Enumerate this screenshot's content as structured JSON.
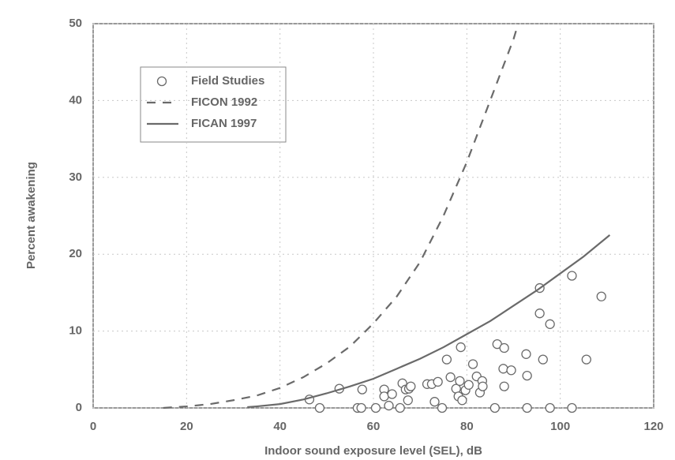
{
  "chart_data": {
    "type": "scatter",
    "x_label": "Indoor sound exposure level (SEL), dB",
    "y_label": "Percent awakening",
    "xlim": [
      0,
      120
    ],
    "xticks": [
      0,
      20,
      40,
      60,
      80,
      100,
      120
    ],
    "ylim": [
      0,
      50
    ],
    "yticks": [
      0,
      10,
      20,
      30,
      40,
      50
    ],
    "grid": true,
    "legend": "upper-left",
    "series": [
      {
        "name": "Field Studies",
        "style": "markers",
        "color": "#6a6a6a",
        "x": [
          46.3,
          48.5,
          52.7,
          56.6,
          57.4,
          57.6,
          60.5,
          62.3,
          62.3,
          63.3,
          64,
          65.7,
          66.2,
          66.9,
          67.6,
          68,
          67.4,
          71.5,
          72.5,
          73.1,
          73.8,
          74.7,
          75.7,
          76.5,
          77.7,
          78.2,
          78.5,
          78.7,
          79,
          79.7,
          80.4,
          81.3,
          82.1,
          82.8,
          83.3,
          83.4,
          86,
          86.5,
          87.8,
          88,
          88,
          89.5,
          92.7,
          92.9,
          92.9,
          95.6,
          95.6,
          96.3,
          97.8,
          97.8,
          102.5,
          102.5,
          105.6,
          108.8
        ],
        "values": [
          1.1,
          0,
          2.5,
          0,
          0,
          2.4,
          0,
          2.4,
          1.5,
          0.3,
          1.8,
          0,
          3.2,
          2.4,
          2.5,
          2.8,
          1,
          3.1,
          3.1,
          0.8,
          3.4,
          0,
          6.3,
          4,
          2.5,
          1.5,
          3.5,
          7.9,
          1,
          2.3,
          3,
          5.7,
          4.1,
          2,
          3.5,
          2.8,
          0,
          8.3,
          5.1,
          7.8,
          2.8,
          4.9,
          7,
          4.2,
          0,
          15.6,
          12.3,
          6.3,
          10.9,
          0,
          0,
          17.2,
          6.3,
          14.5
        ]
      },
      {
        "name": "FICON 1992",
        "style": "dashed",
        "color": "#6a6a6a",
        "x": [
          15,
          20,
          25,
          30,
          35,
          40,
          45,
          50,
          55,
          60,
          65,
          70,
          75,
          80,
          85,
          90,
          91
        ],
        "values": [
          0,
          0.2,
          0.5,
          1,
          1.6,
          2.6,
          4,
          5.8,
          8,
          11,
          14.5,
          19,
          25,
          32,
          40,
          48,
          50
        ]
      },
      {
        "name": "FICAN 1997",
        "style": "solid",
        "color": "#6a6a6a",
        "x": [
          33,
          35,
          40,
          45,
          50,
          55,
          60,
          65,
          70,
          75,
          80,
          85,
          90,
          95,
          100,
          105,
          110.6
        ],
        "values": [
          0.1,
          0.2,
          0.5,
          1.1,
          1.9,
          2.8,
          3.8,
          5.1,
          6.4,
          7.9,
          9.6,
          11.3,
          13.3,
          15.3,
          17.5,
          19.7,
          22.5
        ]
      }
    ]
  }
}
